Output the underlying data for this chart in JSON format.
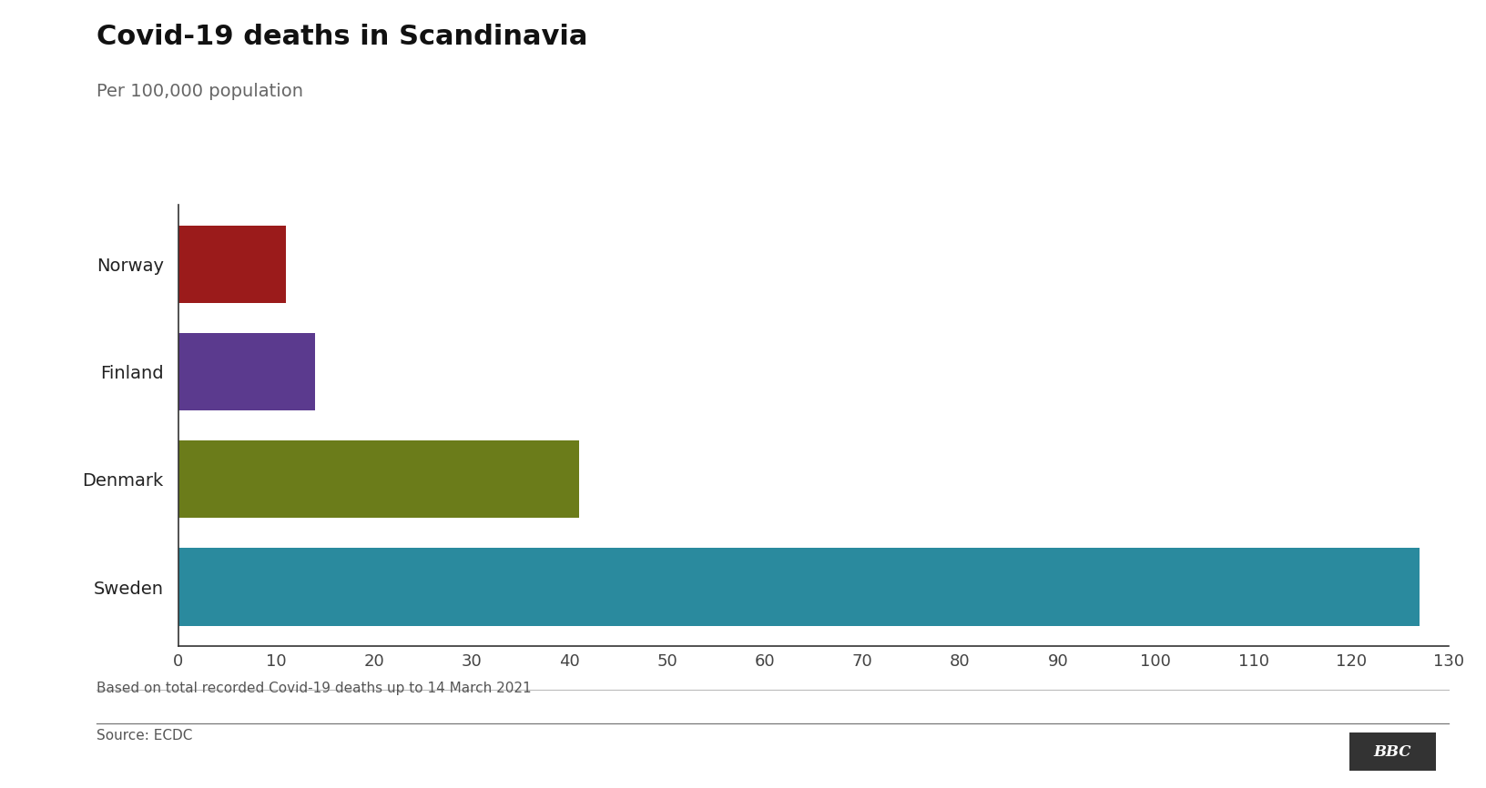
{
  "title": "Covid-19 deaths in Scandinavia",
  "subtitle": "Per 100,000 population",
  "countries": [
    "Norway",
    "Finland",
    "Denmark",
    "Sweden"
  ],
  "values": [
    11,
    14,
    41,
    127
  ],
  "colors": [
    "#9b1b1b",
    "#5b3a8e",
    "#6b7c1a",
    "#2a8a9e"
  ],
  "xlim": [
    0,
    130
  ],
  "xticks": [
    0,
    10,
    20,
    30,
    40,
    50,
    60,
    70,
    80,
    90,
    100,
    110,
    120,
    130
  ],
  "footnote": "Based on total recorded Covid-19 deaths up to 14 March 2021",
  "source": "Source: ECDC",
  "background_color": "#ffffff",
  "title_fontsize": 22,
  "subtitle_fontsize": 14,
  "label_fontsize": 14,
  "tick_fontsize": 13,
  "footnote_fontsize": 11,
  "source_fontsize": 11,
  "bar_height": 0.72
}
